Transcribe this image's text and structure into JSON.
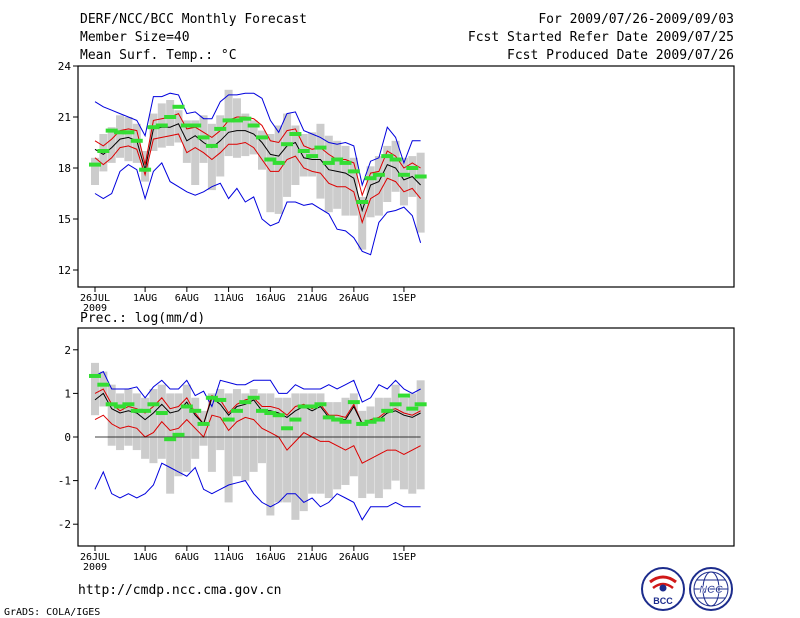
{
  "header": {
    "title": "DERF/NCC/BCC Monthly Forecast",
    "member_size": "Member Size=40",
    "variable": "Mean Surf. Temp.: °C",
    "period": "For 2009/07/26-2009/09/03",
    "fcst_started": "Fcst Started Refer Date 2009/07/25",
    "fcst_produced": "Fcst Produced Date 2009/07/26"
  },
  "footer": {
    "url": "http://cmdp.ncc.cma.gov.cn",
    "grads": "GrADS: COLA/IGES",
    "logo_bcc": "BCC",
    "logo_ncc": "NCC"
  },
  "colors": {
    "box": "#cccccc",
    "forecast": "#33dd33",
    "upper": "#0000dd",
    "lower": "#0000dd",
    "mean": "#000000",
    "spread": "#dd0000"
  },
  "chart_data": [
    {
      "type": "box-ensemble",
      "title": "",
      "xlabel": "",
      "ylabel": "Mean Surf. Temp.: °C",
      "ylim": [
        11,
        24
      ],
      "yticks": [
        12,
        15,
        18,
        21,
        24
      ],
      "x_tick_labels": [
        "26JUL",
        "1AUG",
        "6AUG",
        "11AUG",
        "16AUG",
        "21AUG",
        "26AUG",
        "1SEP"
      ],
      "x_tick_days": [
        0,
        6,
        11,
        16,
        21,
        26,
        31,
        37
      ],
      "year_label": "2009",
      "n_days": 39,
      "series": [
        {
          "name": "ensemble max",
          "color_key": "upper",
          "values": [
            21.9,
            21.6,
            21.4,
            21.2,
            21.0,
            20.8,
            19.9,
            22.2,
            22.2,
            22.4,
            22.3,
            21.2,
            21.3,
            20.9,
            20.9,
            21.9,
            22.3,
            22.3,
            22.4,
            22.4,
            22.1,
            20.8,
            20.1,
            21.2,
            21.3,
            20.2,
            20.0,
            19.8,
            19.5,
            19.4,
            19.5,
            19.3,
            17.0,
            18.4,
            18.6,
            20.4,
            19.8,
            18.3,
            19.6,
            19.6
          ]
        },
        {
          "name": "ensemble min",
          "color_key": "lower",
          "values": [
            16.5,
            16.2,
            16.5,
            17.8,
            18.2,
            17.9,
            16.2,
            17.8,
            18.3,
            17.2,
            16.9,
            16.6,
            16.4,
            16.6,
            16.9,
            17.1,
            16.2,
            16.8,
            16.0,
            16.3,
            15.0,
            14.6,
            14.8,
            16.0,
            16.0,
            15.8,
            15.9,
            15.6,
            15.3,
            14.4,
            14.3,
            13.9,
            13.1,
            12.9,
            14.8,
            15.4,
            15.5,
            15.7,
            15.2,
            13.6
          ]
        },
        {
          "name": "mean + spread",
          "color_key": "spread",
          "values": [
            19.6,
            19.3,
            19.7,
            20.2,
            20.3,
            20.2,
            18.2,
            20.8,
            20.9,
            21.0,
            21.2,
            20.3,
            20.4,
            20.1,
            19.8,
            20.2,
            20.8,
            21.0,
            21.0,
            20.9,
            20.5,
            19.6,
            19.5,
            20.2,
            20.3,
            19.3,
            19.1,
            19.2,
            18.8,
            18.5,
            18.5,
            18.3,
            16.4,
            17.7,
            17.8,
            19.0,
            18.7,
            18.0,
            18.3,
            18.0
          ]
        },
        {
          "name": "ensemble mean",
          "color_key": "mean",
          "values": [
            19.1,
            18.8,
            19.2,
            19.7,
            19.8,
            19.6,
            17.9,
            20.3,
            20.4,
            20.4,
            20.6,
            19.6,
            19.9,
            19.5,
            19.2,
            19.6,
            20.1,
            20.2,
            20.2,
            20.0,
            19.5,
            18.8,
            18.7,
            19.3,
            19.5,
            18.6,
            18.5,
            18.5,
            17.9,
            17.8,
            17.7,
            17.4,
            15.5,
            17.0,
            17.2,
            18.2,
            18.0,
            17.3,
            17.5,
            17.0
          ]
        },
        {
          "name": "mean - spread",
          "color_key": "spread",
          "values": [
            18.6,
            18.2,
            18.6,
            19.2,
            19.3,
            19.1,
            17.6,
            19.7,
            19.8,
            19.9,
            20.0,
            18.9,
            19.2,
            18.9,
            18.5,
            18.9,
            19.4,
            19.4,
            19.5,
            19.2,
            18.5,
            17.8,
            17.8,
            18.5,
            18.7,
            18.0,
            17.8,
            17.7,
            17.1,
            16.9,
            16.9,
            16.6,
            14.8,
            16.2,
            16.5,
            17.4,
            17.2,
            16.6,
            16.8,
            16.2
          ]
        }
      ],
      "boxes": {
        "low": [
          17.0,
          17.8,
          18.3,
          18.6,
          18.4,
          18.3,
          17.2,
          19.0,
          19.2,
          19.3,
          19.5,
          18.3,
          17.0,
          18.3,
          16.7,
          17.5,
          18.7,
          18.6,
          18.7,
          18.8,
          17.9,
          15.4,
          15.3,
          16.3,
          17.0,
          17.5,
          17.5,
          16.2,
          15.4,
          15.6,
          15.2,
          15.2,
          13.2,
          15.1,
          15.2,
          16.0,
          16.6,
          15.8,
          16.3,
          14.2
        ],
        "high": [
          18.6,
          20.0,
          20.4,
          21.1,
          21.0,
          20.6,
          19.0,
          21.2,
          21.8,
          22.0,
          21.4,
          20.8,
          20.8,
          21.1,
          20.6,
          21.1,
          22.6,
          22.1,
          21.2,
          20.8,
          20.2,
          20.0,
          20.5,
          21.2,
          20.5,
          20.0,
          20.1,
          20.6,
          19.9,
          19.6,
          19.3,
          18.6,
          16.3,
          18.1,
          18.7,
          19.3,
          19.6,
          18.6,
          18.7,
          18.9
        ],
        "forecast": [
          18.2,
          19.0,
          20.2,
          20.1,
          20.1,
          19.6,
          17.9,
          20.4,
          20.5,
          21.0,
          21.6,
          20.5,
          20.5,
          19.8,
          19.3,
          20.3,
          20.8,
          20.8,
          20.9,
          20.5,
          19.8,
          18.5,
          18.3,
          19.4,
          20.0,
          19.0,
          18.7,
          19.2,
          18.3,
          18.5,
          18.3,
          17.8,
          16.0,
          17.4,
          17.6,
          18.7,
          18.5,
          17.6,
          18.0,
          17.5
        ]
      }
    },
    {
      "type": "box-ensemble",
      "title": "Prec.: log(mm/d)",
      "xlabel": "",
      "ylabel": "Prec.: log(mm/d)",
      "ylim": [
        -2.5,
        2.5
      ],
      "yticks": [
        -2,
        -1,
        0,
        1,
        2
      ],
      "x_tick_labels": [
        "26JUL",
        "1AUG",
        "6AUG",
        "11AUG",
        "16AUG",
        "21AUG",
        "26AUG",
        "1SEP"
      ],
      "x_tick_days": [
        0,
        6,
        11,
        16,
        21,
        26,
        31,
        37
      ],
      "year_label": "2009",
      "n_days": 39,
      "series": [
        {
          "name": "ensemble max",
          "color_key": "upper",
          "values": [
            1.4,
            1.5,
            1.1,
            1.1,
            1.1,
            1.15,
            0.9,
            1.15,
            1.3,
            1.1,
            1.1,
            1.3,
            0.95,
            1.05,
            0.7,
            1.3,
            1.25,
            1.2,
            1.2,
            1.3,
            1.3,
            1.3,
            1.0,
            1.0,
            1.2,
            1.1,
            1.1,
            1.1,
            1.2,
            1.1,
            1.2,
            1.3,
            0.8,
            0.9,
            1.2,
            1.1,
            1.3,
            1.1,
            1.0,
            1.1
          ]
        },
        {
          "name": "ensemble min",
          "color_key": "lower",
          "values": [
            -1.2,
            -0.8,
            -1.3,
            -1.4,
            -1.3,
            -1.4,
            -1.3,
            -1.1,
            -0.6,
            -0.7,
            -0.8,
            -0.9,
            -0.7,
            -1.2,
            -1.3,
            -1.2,
            -1.1,
            -1.05,
            -1.0,
            -1.3,
            -1.5,
            -1.6,
            -1.5,
            -1.3,
            -1.3,
            -1.5,
            -1.4,
            -1.6,
            -1.5,
            -1.3,
            -1.4,
            -1.5,
            -1.9,
            -1.6,
            -1.6,
            -1.6,
            -1.5,
            -1.6,
            -1.6,
            -1.6
          ]
        },
        {
          "name": "mean + spread",
          "color_key": "spread",
          "values": [
            1.0,
            1.1,
            0.75,
            0.6,
            0.7,
            0.65,
            0.55,
            0.7,
            0.9,
            0.65,
            0.7,
            0.9,
            0.55,
            0.3,
            0.95,
            0.85,
            0.55,
            0.75,
            0.85,
            0.9,
            0.7,
            0.7,
            0.65,
            0.5,
            0.7,
            0.75,
            0.65,
            0.75,
            0.5,
            0.5,
            0.45,
            0.75,
            0.3,
            0.4,
            0.45,
            0.6,
            0.65,
            0.55,
            0.5,
            0.6
          ]
        },
        {
          "name": "ensemble mean",
          "color_key": "mean",
          "values": [
            0.85,
            1.0,
            0.65,
            0.55,
            0.6,
            0.55,
            0.4,
            0.55,
            0.75,
            0.55,
            0.6,
            0.8,
            0.5,
            0.3,
            0.9,
            0.75,
            0.5,
            0.7,
            0.75,
            0.85,
            0.6,
            0.6,
            0.55,
            0.45,
            0.6,
            0.7,
            0.6,
            0.7,
            0.45,
            0.4,
            0.4,
            0.7,
            0.3,
            0.35,
            0.4,
            0.55,
            0.6,
            0.5,
            0.45,
            0.55
          ]
        },
        {
          "name": "mean - spread",
          "color_key": "spread",
          "values": [
            0.4,
            0.5,
            0.3,
            0.2,
            0.25,
            0.2,
            0.0,
            0.1,
            0.35,
            0.15,
            0.2,
            0.4,
            0.2,
            0.0,
            0.5,
            0.45,
            0.15,
            0.35,
            0.45,
            0.4,
            0.2,
            0.1,
            0.0,
            -0.3,
            -0.1,
            0.1,
            0.0,
            -0.1,
            -0.1,
            -0.2,
            -0.3,
            -0.2,
            -0.6,
            -0.5,
            -0.4,
            -0.3,
            -0.3,
            -0.4,
            -0.3,
            -0.2
          ]
        },
        {
          "name": "zero line",
          "color_key": "mean",
          "values": [
            0,
            0,
            0,
            0,
            0,
            0,
            0,
            0,
            0,
            0,
            0,
            0,
            0,
            0,
            0,
            0,
            0,
            0,
            0,
            0,
            0,
            0,
            0,
            0,
            0,
            0,
            0,
            0,
            0,
            0,
            0,
            0,
            0,
            0,
            0,
            0,
            0,
            0,
            0,
            0
          ]
        }
      ],
      "boxes": {
        "low": [
          0.5,
          0.7,
          -0.2,
          -0.3,
          -0.2,
          -0.3,
          -0.5,
          -0.6,
          -0.5,
          -1.3,
          -0.9,
          -0.8,
          -0.5,
          -0.2,
          -0.8,
          -0.3,
          -1.5,
          -0.9,
          -1.0,
          -0.8,
          -0.6,
          -1.8,
          -1.5,
          -1.5,
          -1.9,
          -1.7,
          -1.3,
          -1.3,
          -1.4,
          -1.2,
          -1.1,
          -0.9,
          -1.4,
          -1.3,
          -1.4,
          -1.2,
          -1.0,
          -1.2,
          -1.3,
          -1.2
        ],
        "high": [
          1.7,
          1.5,
          1.2,
          1.0,
          1.1,
          1.0,
          0.9,
          1.1,
          1.2,
          1.0,
          1.0,
          1.2,
          0.9,
          0.6,
          1.0,
          1.1,
          1.0,
          1.1,
          1.0,
          1.1,
          1.0,
          1.0,
          0.9,
          0.9,
          1.0,
          1.0,
          1.0,
          1.0,
          0.8,
          0.8,
          0.9,
          1.0,
          0.6,
          0.7,
          0.9,
          0.9,
          1.2,
          0.9,
          1.0,
          1.3
        ],
        "forecast": [
          1.4,
          1.2,
          0.75,
          0.7,
          0.75,
          0.6,
          0.6,
          0.75,
          0.55,
          -0.05,
          0.05,
          0.7,
          0.6,
          0.3,
          0.9,
          0.85,
          0.4,
          0.6,
          0.8,
          0.9,
          0.6,
          0.55,
          0.5,
          0.2,
          0.4,
          0.7,
          0.7,
          0.75,
          0.45,
          0.4,
          0.35,
          0.8,
          0.3,
          0.35,
          0.4,
          0.6,
          0.75,
          0.95,
          0.65,
          0.75
        ]
      }
    }
  ]
}
